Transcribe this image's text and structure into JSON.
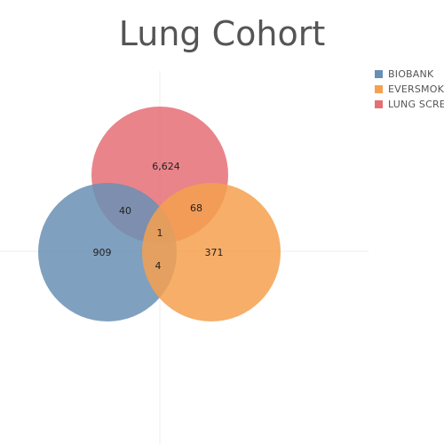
{
  "chart_data": {
    "type": "venn",
    "title": "Lung Cohort",
    "sets": [
      {
        "name": "BIOBANK",
        "color": "#6a8fb4",
        "only": 909
      },
      {
        "name": "EVERSMOKER",
        "color": "#f5a04f",
        "only": 371
      },
      {
        "name": "LUNG SCREENING",
        "color": "#e56f75",
        "only": 6624
      }
    ],
    "intersections": [
      {
        "sets": [
          "BIOBANK",
          "LUNG SCREENING"
        ],
        "value": 40
      },
      {
        "sets": [
          "EVERSMOKER",
          "LUNG SCREENING"
        ],
        "value": 68
      },
      {
        "sets": [
          "BIOBANK",
          "EVERSMOKER",
          "LUNG SCREENING"
        ],
        "value": 1
      },
      {
        "sets": [
          "BIOBANK",
          "EVERSMOKER"
        ],
        "value": 4
      }
    ],
    "region_labels": {
      "lung_only": "6,624",
      "biobank_only": "909",
      "eversmoker_only": "371",
      "biobank_lung": "40",
      "eversmoker_lung": "68",
      "all_three": "1",
      "biobank_eversmoker": "4"
    },
    "legend": {
      "position": "top-right",
      "items": [
        {
          "label": "BIOBANK",
          "color": "#6a8fb4"
        },
        {
          "label": "EVERSMOKER",
          "color": "#f5a04f"
        },
        {
          "label": "LUNG SCREENING",
          "color": "#e56f75"
        }
      ]
    }
  }
}
